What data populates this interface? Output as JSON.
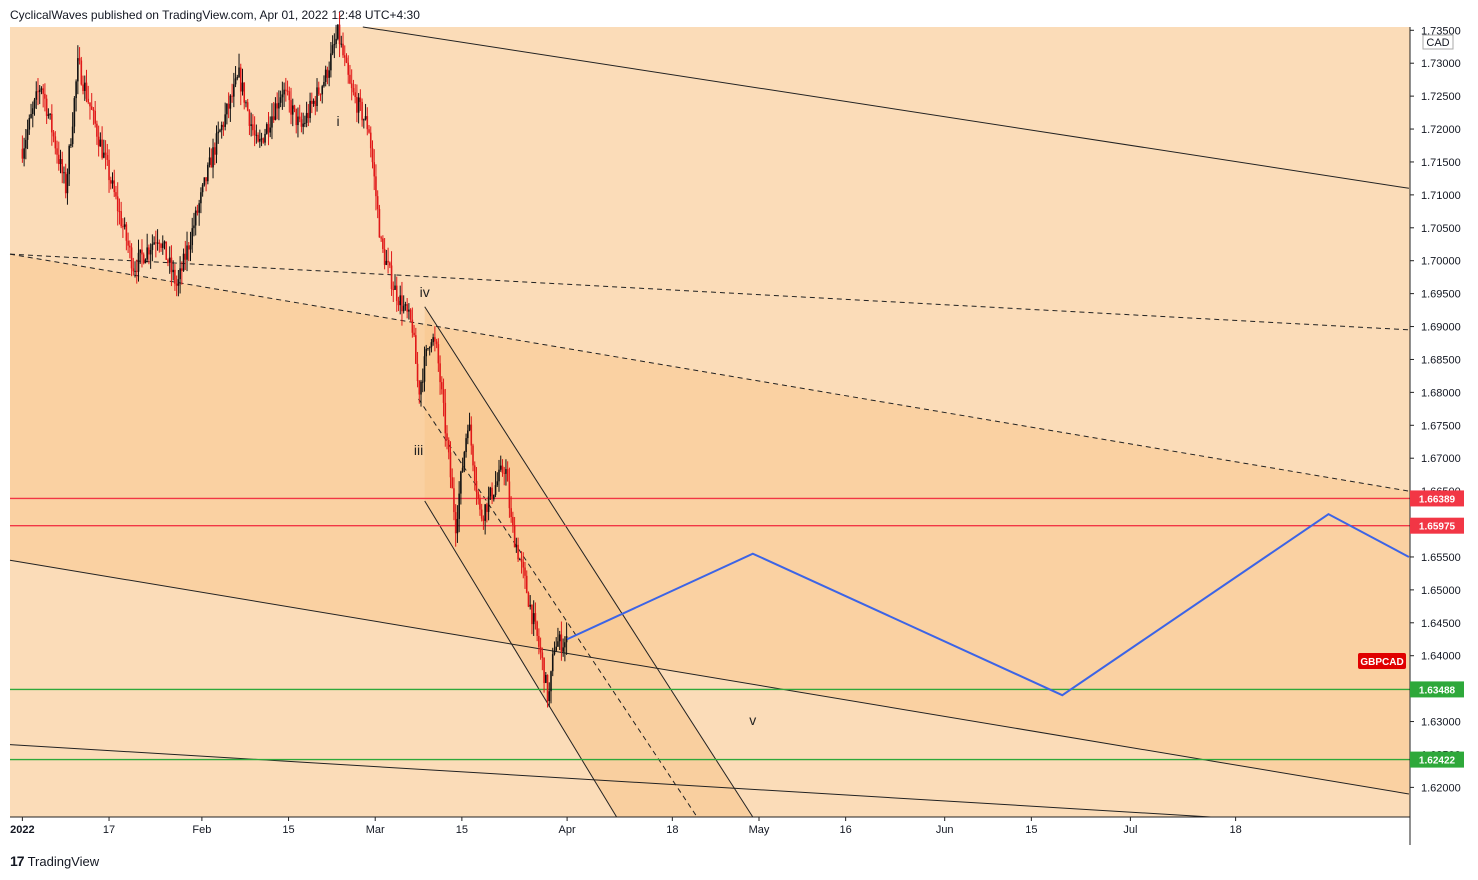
{
  "header": {
    "publisher_line": "CyclicalWaves published on TradingView.com, Apr 01, 2022 12:48 UTC+4:30"
  },
  "footer": {
    "brand": "TradingView",
    "logo_glyph": "17"
  },
  "colors": {
    "background": "#fbdcb8",
    "band": "#fad1a2",
    "candle_up": "#111111",
    "candle_down": "#e01818",
    "projection": "#3c64e6",
    "resistance": "#f23645",
    "support": "#2ea83a",
    "symbol_tag": "#e00000"
  },
  "chart_data": {
    "type": "candlestick",
    "symbol": "GBPCAD",
    "currency": "CAD",
    "x_axis_labels": [
      "2022",
      "17",
      "Feb",
      "15",
      "Mar",
      "15",
      "Apr",
      "18",
      "May",
      "16",
      "Jun",
      "15",
      "Jul",
      "18"
    ],
    "y_axis_labels": [
      "1.73500",
      "1.73000",
      "1.72500",
      "1.72000",
      "1.71500",
      "1.71000",
      "1.70500",
      "1.70000",
      "1.69500",
      "1.69000",
      "1.68500",
      "1.68000",
      "1.67500",
      "1.67000",
      "1.66500",
      "1.65500",
      "1.65000",
      "1.64500",
      "1.64000",
      "1.63000",
      "1.62500",
      "1.62000"
    ],
    "ylim": [
      1.6155,
      1.7355
    ],
    "price_path": [
      {
        "date": "2022-01-03",
        "price": 1.717
      },
      {
        "date": "2022-01-06",
        "price": 1.727
      },
      {
        "date": "2022-01-10",
        "price": 1.711
      },
      {
        "date": "2022-01-12",
        "price": 1.73
      },
      {
        "date": "2022-01-17",
        "price": 1.713
      },
      {
        "date": "2022-01-21",
        "price": 1.699
      },
      {
        "date": "2022-01-25",
        "price": 1.704
      },
      {
        "date": "2022-01-28",
        "price": 1.696
      },
      {
        "date": "2022-02-03",
        "price": 1.717
      },
      {
        "date": "2022-02-07",
        "price": 1.728
      },
      {
        "date": "2022-02-10",
        "price": 1.717
      },
      {
        "date": "2022-02-14",
        "price": 1.726
      },
      {
        "date": "2022-02-17",
        "price": 1.72
      },
      {
        "date": "2022-02-21",
        "price": 1.728
      },
      {
        "date": "2022-02-23",
        "price": 1.7345
      },
      {
        "date": "2022-02-25",
        "price": 1.726
      },
      {
        "date": "2022-02-28",
        "price": 1.72
      },
      {
        "date": "2022-03-02",
        "price": 1.702
      },
      {
        "date": "2022-03-04",
        "price": 1.696
      },
      {
        "date": "2022-03-07",
        "price": 1.69
      },
      {
        "date": "2022-03-08",
        "price": 1.68
      },
      {
        "date": "2022-03-10",
        "price": 1.689
      },
      {
        "date": "2022-03-11",
        "price": 1.686
      },
      {
        "date": "2022-03-14",
        "price": 1.66
      },
      {
        "date": "2022-03-16",
        "price": 1.676
      },
      {
        "date": "2022-03-18",
        "price": 1.661
      },
      {
        "date": "2022-03-22",
        "price": 1.669
      },
      {
        "date": "2022-03-23",
        "price": 1.66
      },
      {
        "date": "2022-03-25",
        "price": 1.652
      },
      {
        "date": "2022-03-28",
        "price": 1.639
      },
      {
        "date": "2022-03-29",
        "price": 1.633
      },
      {
        "date": "2022-03-30",
        "price": 1.642
      },
      {
        "date": "2022-04-01",
        "price": 1.642
      }
    ],
    "projection": [
      {
        "date": "2022-04-01",
        "price": 1.6425
      },
      {
        "date": "2022-05-01",
        "price": 1.6555
      },
      {
        "date": "2022-06-20",
        "price": 1.634
      },
      {
        "date": "2022-08-02",
        "price": 1.6615
      },
      {
        "date": "2022-08-15",
        "price": 1.655
      }
    ],
    "horizontal_levels": [
      {
        "price": "1.66389",
        "kind": "resistance"
      },
      {
        "price": "1.65975",
        "kind": "resistance"
      },
      {
        "price": "1.63488",
        "kind": "support"
      },
      {
        "price": "1.62422",
        "kind": "support"
      }
    ],
    "wave_labels": [
      {
        "text": "i",
        "date": "2022-02-23",
        "price": 1.7205
      },
      {
        "text": "iv",
        "date": "2022-03-09",
        "price": 1.6945
      },
      {
        "text": "iii",
        "date": "2022-03-08",
        "price": 1.6705
      },
      {
        "text": "v",
        "date": "2022-05-01",
        "price": 1.6295
      }
    ],
    "trend_lines": [
      {
        "style": "solid",
        "from": {
          "date": "2022-02-27",
          "price": 1.7355
        },
        "to": {
          "date": "2022-08-15",
          "price": 1.711
        }
      },
      {
        "style": "dashed",
        "from": {
          "date": "2022-01-01",
          "price": 1.701
        },
        "to": {
          "date": "2022-08-15",
          "price": 1.6895
        }
      },
      {
        "style": "dashed",
        "from": {
          "date": "2022-01-01",
          "price": 1.701
        },
        "to": {
          "date": "2022-08-15",
          "price": 1.665
        }
      },
      {
        "style": "solid",
        "from": {
          "date": "2022-01-01",
          "price": 1.6545
        },
        "to": {
          "date": "2022-08-15",
          "price": 1.619
        }
      },
      {
        "style": "solid",
        "from": {
          "date": "2022-01-01",
          "price": 1.6265
        },
        "to": {
          "date": "2022-07-14",
          "price": 1.6155
        }
      },
      {
        "style": "solid",
        "from": {
          "date": "2022-03-09",
          "price": 1.693
        },
        "to": {
          "date": "2022-05-01",
          "price": 1.6155
        }
      },
      {
        "style": "solid",
        "from": {
          "date": "2022-03-09",
          "price": 1.6635
        },
        "to": {
          "date": "2022-04-09",
          "price": 1.6155
        }
      },
      {
        "style": "dashed",
        "from": {
          "date": "2022-03-08",
          "price": 1.679
        },
        "to": {
          "date": "2022-04-22",
          "price": 1.6155
        }
      }
    ]
  }
}
